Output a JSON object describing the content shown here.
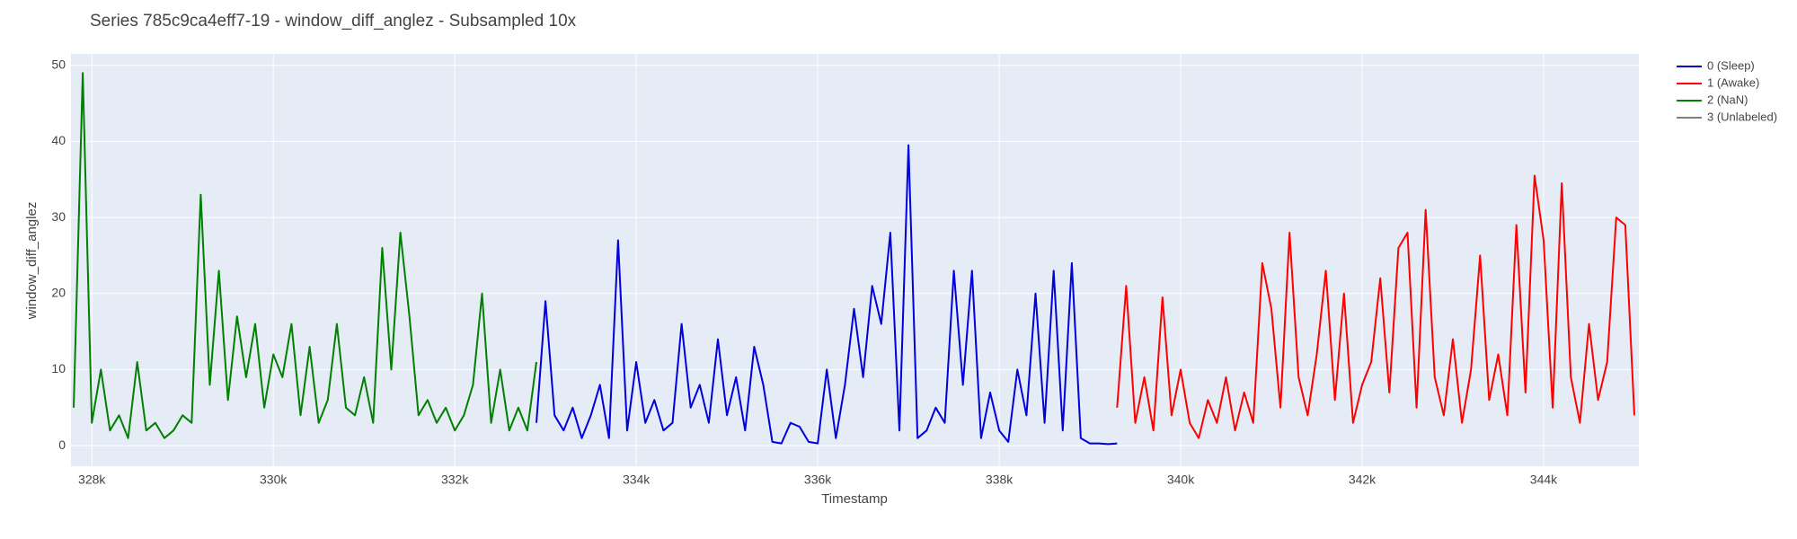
{
  "chart_data": {
    "type": "line",
    "title": "Series 785c9ca4eff7-19 - window_diff_anglez - Subsampled 10x",
    "x_label": "Timestamp",
    "y_label": "window_diff_anglez",
    "xlim": [
      327770,
      345050
    ],
    "ylim": [
      -2.7,
      51.5
    ],
    "xticks": [
      {
        "value": 328000,
        "label": "328k"
      },
      {
        "value": 330000,
        "label": "330k"
      },
      {
        "value": 332000,
        "label": "332k"
      },
      {
        "value": 334000,
        "label": "334k"
      },
      {
        "value": 336000,
        "label": "336k"
      },
      {
        "value": 338000,
        "label": "338k"
      },
      {
        "value": 340000,
        "label": "340k"
      },
      {
        "value": 342000,
        "label": "342k"
      },
      {
        "value": 344000,
        "label": "344k"
      }
    ],
    "yticks": [
      0,
      10,
      20,
      30,
      40,
      50
    ],
    "grid": true,
    "legend": "right-top",
    "series": [
      {
        "name": "0 (Sleep)",
        "color": "#0000dd",
        "x": [
          332900,
          333000,
          333100,
          333200,
          333300,
          333400,
          333500,
          333600,
          333700,
          333800,
          333900,
          334000,
          334100,
          334200,
          334300,
          334400,
          334500,
          334600,
          334700,
          334800,
          334900,
          335000,
          335100,
          335200,
          335300,
          335400,
          335500,
          335600,
          335700,
          335800,
          335900,
          336000,
          336100,
          336200,
          336300,
          336400,
          336500,
          336600,
          336700,
          336800,
          336900,
          337000,
          337100,
          337200,
          337300,
          337400,
          337500,
          337600,
          337700,
          337800,
          337900,
          338000,
          338100,
          338200,
          338300,
          338400,
          338500,
          338600,
          338700,
          338800,
          338900,
          339000,
          339100,
          339200,
          339300
        ],
        "values": [
          3,
          19,
          4,
          2,
          5,
          1,
          4,
          8,
          1,
          27,
          2,
          11,
          3,
          6,
          2,
          3,
          16,
          5,
          8,
          3,
          14,
          4,
          9,
          2,
          13,
          8,
          0.5,
          0.3,
          3,
          2.5,
          0.5,
          0.3,
          10,
          1,
          8,
          18,
          9,
          21,
          16,
          28,
          2,
          39.5,
          1,
          2,
          5,
          3,
          23,
          8,
          23,
          1,
          7,
          2,
          0.5,
          10,
          4,
          20,
          3,
          23,
          2,
          24,
          1,
          0.3,
          0.3,
          0.2,
          0.3
        ]
      },
      {
        "name": "1 (Awake)",
        "color": "#ff0000",
        "x": [
          339300,
          339400,
          339500,
          339600,
          339700,
          339800,
          339900,
          340000,
          340100,
          340200,
          340300,
          340400,
          340500,
          340600,
          340700,
          340800,
          340900,
          341000,
          341100,
          341200,
          341300,
          341400,
          341500,
          341600,
          341700,
          341800,
          341900,
          342000,
          342100,
          342200,
          342300,
          342400,
          342500,
          342600,
          342700,
          342800,
          342900,
          343000,
          343100,
          343200,
          343300,
          343400,
          343500,
          343600,
          343700,
          343800,
          343900,
          344000,
          344100,
          344200,
          344300,
          344400,
          344500,
          344600,
          344700,
          344800,
          344900,
          345000
        ],
        "values": [
          5,
          21,
          3,
          9,
          2,
          19.5,
          4,
          10,
          3,
          1,
          6,
          3,
          9,
          2,
          7,
          3,
          24,
          18,
          5,
          28,
          9,
          4,
          12,
          23,
          6,
          20,
          3,
          8,
          11,
          22,
          7,
          26,
          28,
          5,
          31,
          9,
          4,
          14,
          3,
          10,
          25,
          6,
          12,
          4,
          29,
          7,
          35.5,
          27,
          5,
          34.5,
          9,
          3,
          16,
          6,
          11,
          30,
          29,
          4
        ]
      },
      {
        "name": "2 (NaN)",
        "color": "#008000",
        "x": [
          327800,
          327900,
          328000,
          328100,
          328200,
          328300,
          328400,
          328500,
          328600,
          328700,
          328800,
          328900,
          329000,
          329100,
          329200,
          329300,
          329400,
          329500,
          329600,
          329700,
          329800,
          329900,
          330000,
          330100,
          330200,
          330300,
          330400,
          330500,
          330600,
          330700,
          330800,
          330900,
          331000,
          331100,
          331200,
          331300,
          331400,
          331500,
          331600,
          331700,
          331800,
          331900,
          332000,
          332100,
          332200,
          332300,
          332400,
          332500,
          332600,
          332700,
          332800,
          332900
        ],
        "values": [
          5,
          49,
          3,
          10,
          2,
          4,
          1,
          11,
          2,
          3,
          1,
          2,
          4,
          3,
          33,
          8,
          23,
          6,
          17,
          9,
          16,
          5,
          12,
          9,
          16,
          4,
          13,
          3,
          6,
          16,
          5,
          4,
          9,
          3,
          26,
          10,
          28,
          17,
          4,
          6,
          3,
          5,
          2,
          4,
          8,
          20,
          3,
          10,
          2,
          5,
          2,
          11
        ]
      },
      {
        "name": "3 (Unlabeled)",
        "color": "#808080",
        "x": [],
        "values": []
      }
    ]
  }
}
